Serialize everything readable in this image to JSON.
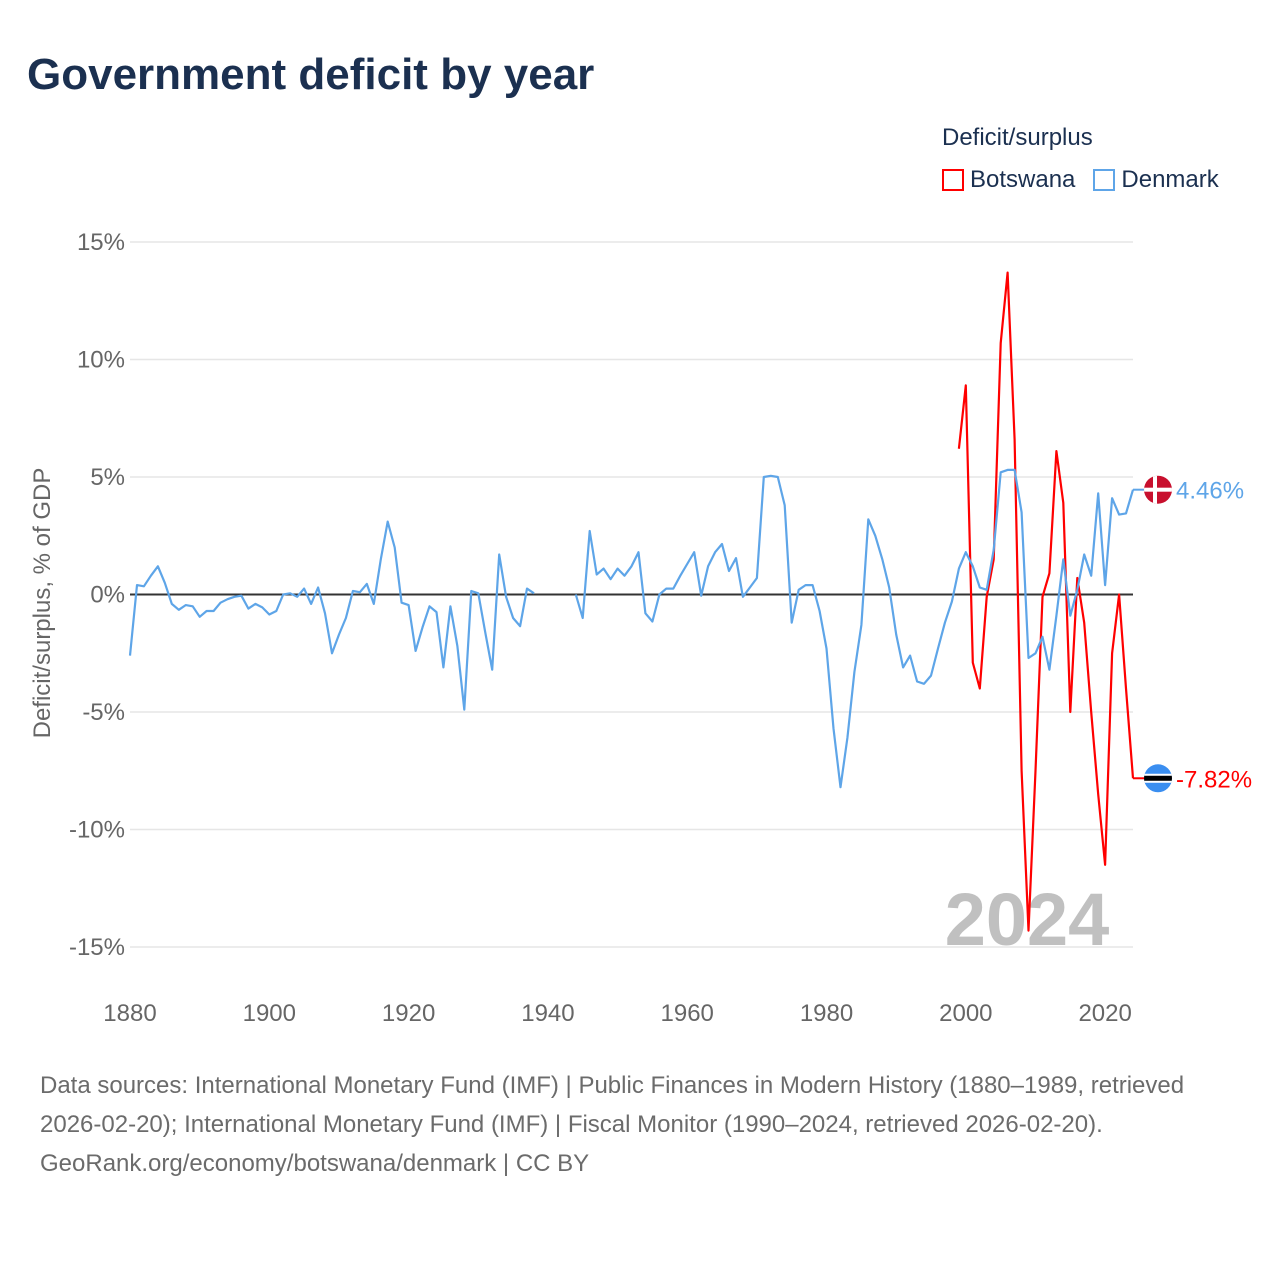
{
  "title": "Government deficit by year",
  "legend": {
    "title": "Deficit/surplus",
    "items": [
      {
        "name": "Botswana",
        "color": "#ff0000"
      },
      {
        "name": "Denmark",
        "color": "#5ea5e8"
      }
    ]
  },
  "footer": {
    "sources": "Data sources: International Monetary Fund (IMF) | Public Finances in Modern History (1880–1989, retrieved 2026-02-20); International Monetary Fund (IMF) | Fiscal Monitor (1990–2024, retrieved 2026-02-20).",
    "credit": "GeoRank.org/economy/botswana/denmark | CC BY"
  },
  "chart_data": {
    "type": "line",
    "title": "Government deficit by year",
    "xlabel": "",
    "ylabel": "Deficit/surplus, % of GDP",
    "xlim": [
      1880,
      2024
    ],
    "ylim": [
      -15,
      15
    ],
    "x_ticks": [
      "1880",
      "1900",
      "1920",
      "1940",
      "1960",
      "1980",
      "2000",
      "2020"
    ],
    "x_tick_values": [
      1880,
      1900,
      1920,
      1940,
      1960,
      1980,
      2000,
      2020
    ],
    "y_ticks": [
      "15%",
      "10%",
      "5%",
      "0%",
      "-5%",
      "-10%",
      "-15%"
    ],
    "y_tick_values": [
      15,
      10,
      5,
      0,
      -5,
      -10,
      -15
    ],
    "grid": true,
    "legend_position": "top-right",
    "year_label": "2024",
    "series": [
      {
        "name": "Denmark",
        "color": "#5ea5e8",
        "start_year": 1880,
        "end_label": "4.46%",
        "values": [
          -2.6,
          0.4,
          0.35,
          0.8,
          1.2,
          0.5,
          -0.4,
          -0.65,
          -0.45,
          -0.5,
          -0.95,
          -0.7,
          -0.7,
          -0.35,
          -0.2,
          -0.1,
          -0.05,
          -0.6,
          -0.4,
          -0.55,
          -0.85,
          -0.7,
          0.0,
          0.05,
          -0.1,
          0.25,
          -0.4,
          0.3,
          -0.8,
          -2.5,
          -1.7,
          -1.0,
          0.15,
          0.1,
          0.45,
          -0.4,
          1.5,
          3.1,
          2.0,
          -0.35,
          -0.45,
          -2.4,
          -1.4,
          -0.5,
          -0.75,
          -3.1,
          -0.5,
          -2.2,
          -4.9,
          0.15,
          0.05,
          -1.6,
          -3.2,
          1.7,
          -0.1,
          -1.0,
          -1.35,
          0.25,
          0.05,
          null,
          null,
          null,
          null,
          null,
          0.0,
          -1.0,
          2.7,
          0.85,
          1.1,
          0.65,
          1.1,
          0.8,
          1.2,
          1.8,
          -0.8,
          -1.15,
          0.0,
          0.25,
          0.25,
          0.8,
          1.3,
          1.8,
          -0.05,
          1.2,
          1.8,
          2.15,
          1.0,
          1.55,
          -0.1,
          0.3,
          0.7,
          5.0,
          5.05,
          5.0,
          3.8,
          -1.2,
          0.2,
          0.4,
          0.4,
          -0.7,
          -2.3,
          -5.7,
          -8.2,
          -6.1,
          -3.3,
          -1.3,
          3.2,
          2.5,
          1.5,
          0.3,
          -1.7,
          -3.1,
          -2.6,
          -3.7,
          -3.8,
          -3.45,
          -2.3,
          -1.2,
          -0.3,
          1.1,
          1.8,
          1.2,
          0.3,
          0.2,
          1.9,
          5.2,
          5.3,
          5.3,
          3.5,
          -2.7,
          -2.5,
          -1.8,
          -3.2,
          -0.9,
          1.5,
          -0.9,
          0.2,
          1.7,
          0.8,
          4.3,
          0.4,
          4.1,
          3.4,
          3.45,
          4.46
        ]
      },
      {
        "name": "Botswana",
        "color": "#ff0000",
        "start_year": 1999,
        "end_label": "-7.82%",
        "values": [
          6.2,
          8.9,
          -2.9,
          -4.0,
          -0.1,
          1.5,
          10.7,
          13.7,
          6.6,
          -7.5,
          -14.3,
          -7.5,
          -0.1,
          0.9,
          6.1,
          3.9,
          -5.0,
          0.7,
          -1.2,
          -5.0,
          -8.5,
          -11.5,
          -2.5,
          0.0,
          -4.0,
          -7.82
        ]
      }
    ]
  }
}
